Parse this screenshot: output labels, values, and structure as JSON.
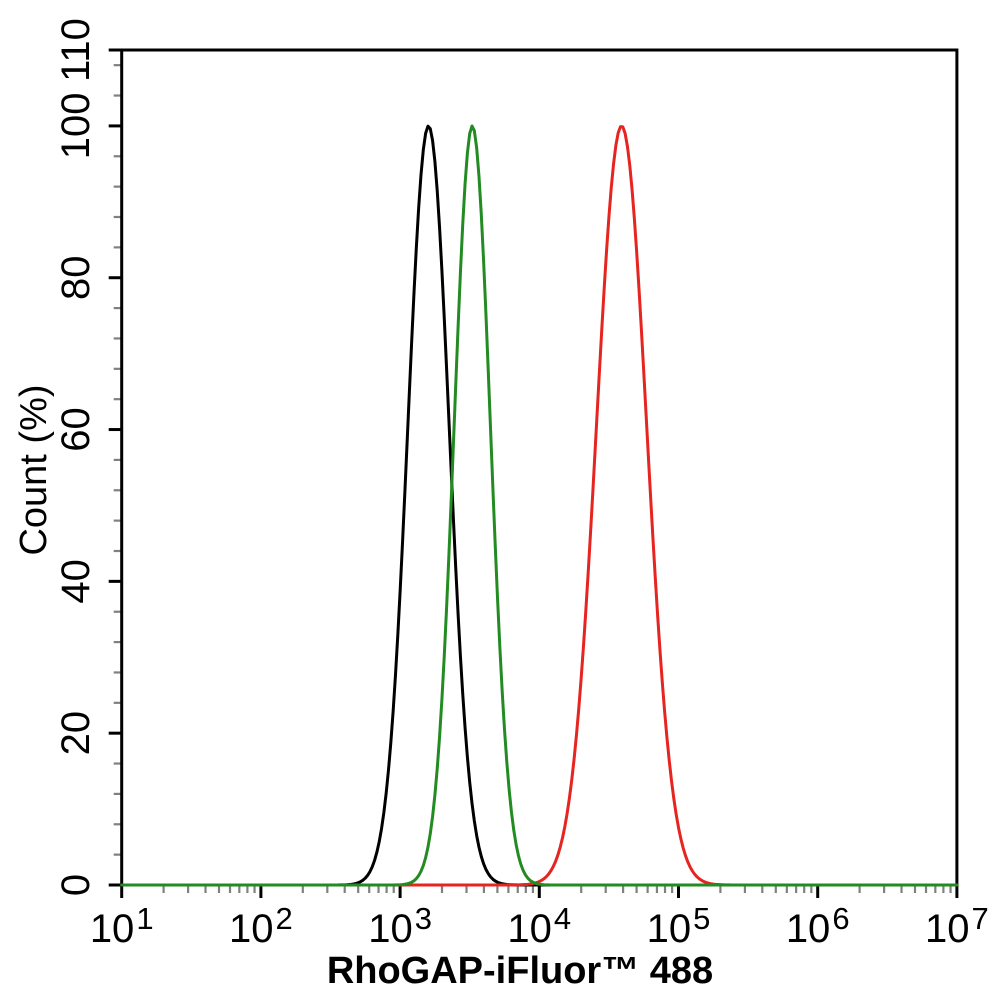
{
  "chart_data": {
    "type": "line",
    "subtype": "flow-cytometry-overlay-histogram",
    "title": "",
    "xlabel": "RhoGAP-iFluor™ 488",
    "ylabel": "Count (%)",
    "x_scale": "log10",
    "x_range": [
      10,
      10000000
    ],
    "x_major_tick_exponents": [
      1,
      2,
      3,
      4,
      5,
      6,
      7
    ],
    "x_tick_base": "10",
    "x_minor_mantissas": [
      2,
      3,
      4,
      5,
      6,
      7,
      8,
      9
    ],
    "y_range": [
      0,
      110
    ],
    "y_major_ticks": [
      0,
      20,
      40,
      60,
      80,
      100,
      110
    ],
    "y_minor_tick_step": 4,
    "grid": false,
    "legend": false,
    "frame": "full-box",
    "series": [
      {
        "name": "black-curve",
        "color": "#000000",
        "shape": "gaussian-in-log10x",
        "peak_x": 1600,
        "peak_y": 100,
        "sigma_log10": 0.148
      },
      {
        "name": "red-curve",
        "color": "#e62420",
        "shape": "gaussian-in-log10x",
        "peak_x": 39000,
        "peak_y": 100,
        "sigma_log10": 0.18
      },
      {
        "name": "green-curve",
        "color": "#228b22",
        "shape": "gaussian-in-log10x",
        "peak_x": 3300,
        "peak_y": 100,
        "sigma_log10": 0.13
      }
    ]
  },
  "style": {
    "background": "#ffffff",
    "axis_color": "#000000",
    "major_tick_color": "#000000",
    "minor_tick_color": "#808080",
    "text_color": "#000000"
  }
}
